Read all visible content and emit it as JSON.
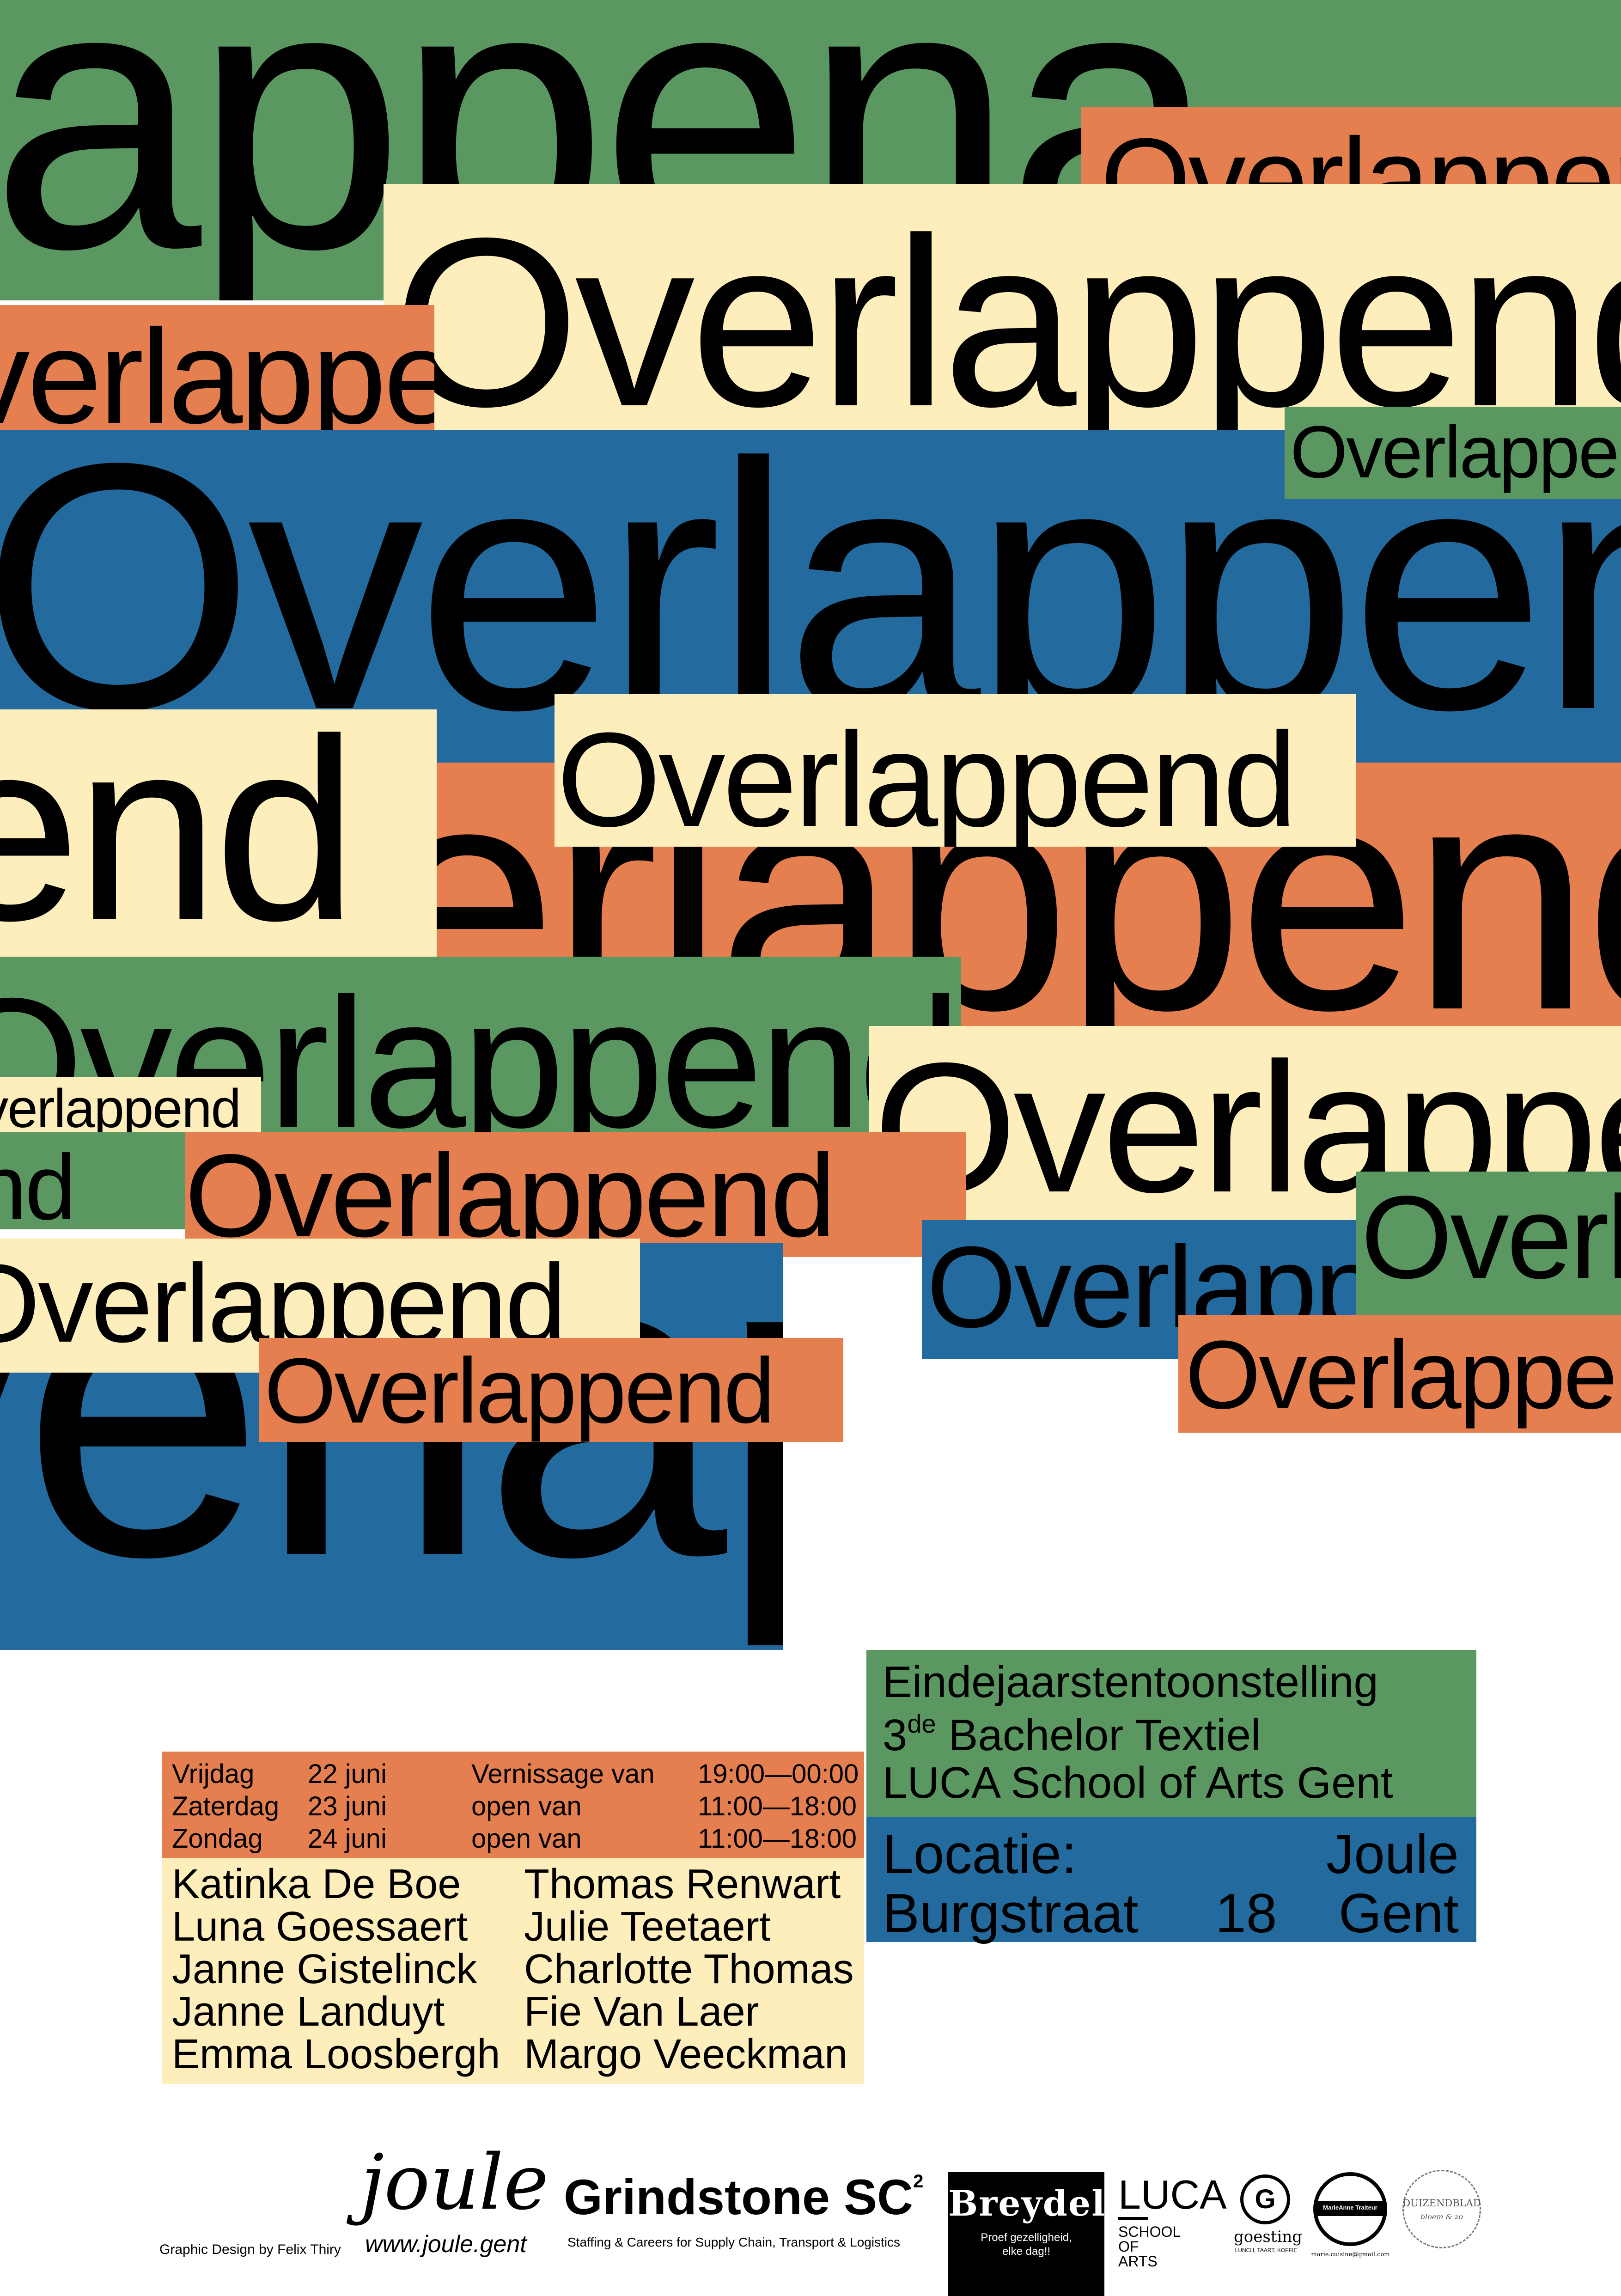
{
  "poster": {
    "hero_word_fragments": {
      "top_green": "appena",
      "small_orange_top": "Overlappend",
      "cream_large": "Overlappend",
      "orange_left": "Overlappend",
      "green_right_small": "Overlappend",
      "blue_large": "Overlappend",
      "cream_mid": "Overlappend",
      "cream_left_pen": "Overlappend",
      "orange_mid_large": "Overlappend",
      "green_mid": "Overlappend",
      "cream_right": "Overlappend",
      "cream_small_left": "Overlappend",
      "green_small_left": "Overlappend",
      "orange_mid": "Overlappend",
      "green_right_mid": "Overlappend",
      "blue_right": "Overlappend",
      "cream_lower_left": "Overlappend",
      "orange_right_low": "Overlappend",
      "orange_low": "Overlappend",
      "blue_bottom": "Overlappend"
    },
    "exhibition": {
      "line1": "Eindejaarstentoonstelling",
      "line2_num": "3",
      "line2_sup": "de",
      "line2_rest": " Bachelor Textiel",
      "line3": "LUCA School of Arts Gent"
    },
    "location": {
      "label": "Locatie:",
      "venue": "Joule",
      "street": "Burgstraat",
      "number": "18",
      "city": "Gent"
    },
    "schedule": [
      {
        "day": "Vrijdag",
        "date": "22 juni",
        "desc": "Vernissage van",
        "time": "19:00—00:00"
      },
      {
        "day": "Zaterdag",
        "date": "23 juni",
        "desc": "open van",
        "time": "11:00—18:00"
      },
      {
        "day": "Zondag",
        "date": "24 juni",
        "desc": "open van",
        "time": "11:00—18:00"
      }
    ],
    "artists_left": [
      "Katinka De Boe",
      "Luna Goessaert",
      "Janne Gistelinck",
      "Janne Landuyt",
      "Emma Loosbergh"
    ],
    "artists_right": [
      "Thomas Renwart",
      "Julie Teetaert",
      "Charlotte Thomas",
      "Fie Van Laer",
      "Margo Veeckman"
    ],
    "credit": "Graphic Design by Felix Thiry",
    "sponsors": {
      "joule": "joule",
      "joule_url": "www.joule.gent",
      "grindstone": "Grindstone SC",
      "grindstone_sup": "2",
      "grindstone_tag": "Staffing & Careers for Supply Chain, Transport & Logistics",
      "breydel": "Breydel",
      "breydel_tag1": "Proef gezelligheid,",
      "breydel_tag2": "elke dag!!",
      "luca": "LUCA",
      "luca_l1": "SCHOOL",
      "luca_l2": "OF",
      "luca_l3": "ARTS",
      "goesting_mark": "G",
      "goesting": "goesting",
      "goesting_tag": "LUNCH, TAART, KOFFIE",
      "traiteur": "MarieAnne Traiteur",
      "traiteur_tag": "marie.cuisine@gmail.com",
      "duizendblad": "DUIZENDBLAD",
      "duizendblad_tag": "bloem & zo"
    },
    "colors": {
      "green": "#5b9760",
      "orange": "#e57f4f",
      "cream": "#fdeebc",
      "blue": "#236a9e"
    }
  }
}
